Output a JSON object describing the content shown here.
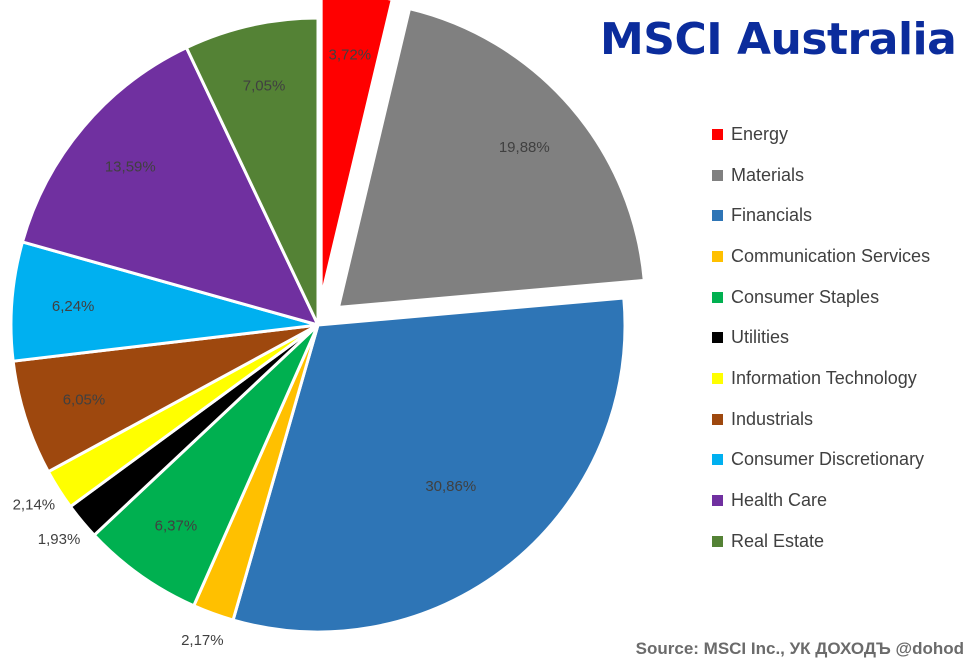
{
  "title": "MSCI Australia",
  "source": "Source: MSCI Inc., УК ДОХОДЪ @dohod",
  "chart_data": {
    "type": "pie",
    "title": "MSCI Australia",
    "slices": [
      {
        "name": "Energy",
        "value": 3.72,
        "label": "3,72%",
        "color": "#ff0000",
        "exploded": true,
        "label_color": "#404040"
      },
      {
        "name": "Materials",
        "value": 19.88,
        "label": "19,88%",
        "color": "#808080",
        "exploded": true,
        "label_color": "#404040"
      },
      {
        "name": "Financials",
        "value": 30.86,
        "label": "30,86%",
        "color": "#2e75b6",
        "exploded": false,
        "label_color": "#404040"
      },
      {
        "name": "Communication Services",
        "value": 2.17,
        "label": "2,17%",
        "color": "#ffc000",
        "exploded": false,
        "label_color": "#404040"
      },
      {
        "name": "Consumer Staples",
        "value": 6.37,
        "label": "6,37%",
        "color": "#00b050",
        "exploded": false,
        "label_color": "#404040"
      },
      {
        "name": "Utilities",
        "value": 1.93,
        "label": "1,93%",
        "color": "#000000",
        "exploded": false,
        "label_color": "#404040"
      },
      {
        "name": "Information Technology",
        "value": 2.14,
        "label": "2,14%",
        "color": "#ffff00",
        "exploded": false,
        "label_color": "#404040"
      },
      {
        "name": "Industrials",
        "value": 6.05,
        "label": "6,05%",
        "color": "#9e480e",
        "exploded": false,
        "label_color": "#404040"
      },
      {
        "name": "Consumer Discretionary",
        "value": 6.24,
        "label": "6,24%",
        "color": "#00b0f0",
        "exploded": false,
        "label_color": "#404040"
      },
      {
        "name": "Health Care",
        "value": 13.59,
        "label": "13,59%",
        "color": "#7030a0",
        "exploded": false,
        "label_color": "#404040"
      },
      {
        "name": "Real Estate",
        "value": 7.05,
        "label": "7,05%",
        "color": "#548235",
        "exploded": false,
        "label_color": "#404040"
      }
    ],
    "legend_position": "right"
  }
}
